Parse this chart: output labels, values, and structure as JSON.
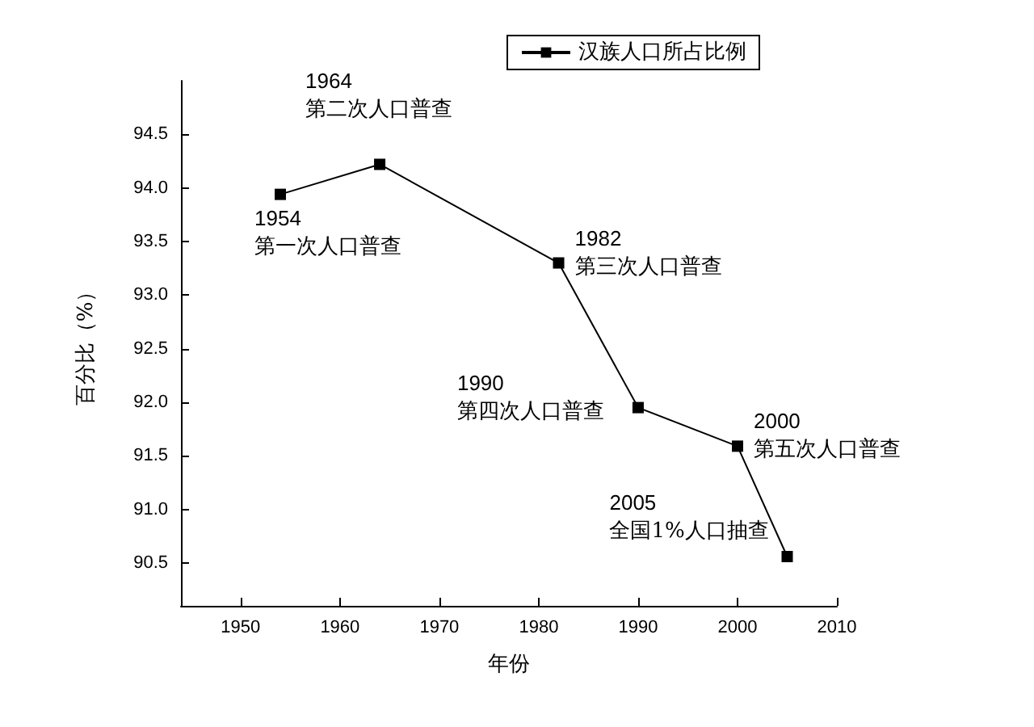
{
  "chart_data": {
    "type": "line",
    "xlabel": "年份",
    "ylabel": "百分比（%）",
    "x": [
      1954,
      1964,
      1982,
      1990,
      2000,
      2005
    ],
    "series": [
      {
        "name": "汉族人口所占比例",
        "color": "#000000",
        "values": [
          93.94,
          94.22,
          93.3,
          91.95,
          91.59,
          90.56
        ]
      }
    ],
    "xlim": [
      1944,
      2010
    ],
    "xticks": [
      1950,
      1960,
      1970,
      1980,
      1990,
      2000,
      2010
    ],
    "ylim": [
      90.1,
      95.0
    ],
    "yticks": [
      90.5,
      {
        "value": 91,
        "label": "91.0"
      },
      91.5,
      {
        "value": 92,
        "label": "92.0"
      },
      92.5,
      {
        "value": 93,
        "label": "93.0"
      },
      93.5,
      {
        "value": 94,
        "label": "94.0"
      },
      94.5
    ],
    "annotations": [
      {
        "text": "1954\n第一次人口普查",
        "x": 1954,
        "y": 93.94
      },
      {
        "text": "1964\n第二次人口普查",
        "x": 1964,
        "y": 94.22
      },
      {
        "text": "1982\n第三次人口普查",
        "x": 1982,
        "y": 93.3
      },
      {
        "text": "1990\n第四次人口普查",
        "x": 1990,
        "y": 91.95
      },
      {
        "text": "2000\n第五次人口普查",
        "x": 2000,
        "y": 91.59
      },
      {
        "text": "2005\n全国1%人口抽查",
        "x": 2005,
        "y": 90.56
      }
    ],
    "grid": false,
    "legend": "top right",
    "marker": "square",
    "line_style": "solid"
  }
}
